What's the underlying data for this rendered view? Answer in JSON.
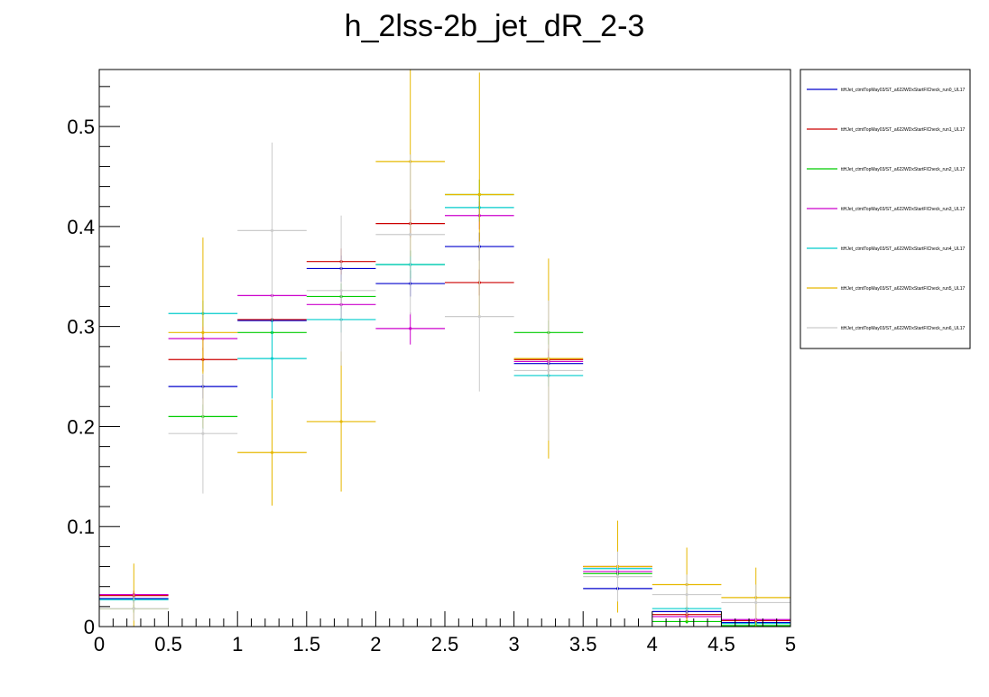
{
  "chart_data": {
    "type": "scatter",
    "title": "h_2lss-2b_jet_dR_2-3",
    "xlabel": "",
    "ylabel": "",
    "xlim": [
      0,
      5
    ],
    "ylim": [
      0,
      0.557
    ],
    "x_ticks": [
      "0",
      "0.5",
      "1",
      "1.5",
      "2",
      "2.5",
      "3",
      "3.5",
      "4",
      "4.5",
      "5"
    ],
    "y_ticks": [
      "0",
      "0.1",
      "0.2",
      "0.3",
      "0.4",
      "0.5"
    ],
    "bin_edges": [
      0,
      0.5,
      1,
      1.5,
      2,
      2.5,
      3,
      3.5,
      4,
      4.5,
      5
    ],
    "legend_position": "right",
    "series": [
      {
        "name": "ttHJet_ctmtTopMay03/ST_a622WDxStartFlCheck_run0_UL17",
        "color": "#0000cc",
        "values": [
          0.028,
          0.24,
          0.306,
          0.358,
          0.343,
          0.38,
          0.263,
          0.038,
          0.015,
          0.004
        ],
        "errors": [
          0.004,
          0.012,
          0.013,
          0.013,
          0.013,
          0.014,
          0.011,
          0.004,
          0.003,
          0.002
        ]
      },
      {
        "name": "ttHJet_ctmtTopMay03/ST_a622WDxStartFlCheck_run1_UL17",
        "color": "#cc0000",
        "values": [
          0.031,
          0.267,
          0.307,
          0.365,
          0.403,
          0.344,
          0.267,
          0.06,
          0.012,
          0.006
        ],
        "errors": [
          0.004,
          0.012,
          0.013,
          0.013,
          0.014,
          0.013,
          0.011,
          0.005,
          0.003,
          0.002
        ]
      },
      {
        "name": "ttHJet_ctmtTopMay03/ST_a622WDxStartFlCheck_run2_UL17",
        "color": "#00cc00",
        "values": [
          0.018,
          0.21,
          0.294,
          0.33,
          0.362,
          0.432,
          0.294,
          0.053,
          0.005,
          0.001
        ],
        "errors": [
          0.004,
          0.012,
          0.013,
          0.013,
          0.014,
          0.015,
          0.012,
          0.005,
          0.002,
          0.001
        ]
      },
      {
        "name": "ttHJet_ctmtTopMay03/ST_a622WDxStartFlCheck_run3_UL17",
        "color": "#cc00cc",
        "values": [
          0.032,
          0.288,
          0.331,
          0.322,
          0.298,
          0.411,
          0.265,
          0.055,
          0.01,
          0.007
        ],
        "errors": [
          0.004,
          0.012,
          0.013,
          0.013,
          0.016,
          0.014,
          0.011,
          0.005,
          0.003,
          0.002
        ]
      },
      {
        "name": "ttHJet_ctmtTopMay03/ST_a622WDxStartFlCheck_run4_UL17",
        "color": "#00cccc",
        "values": [
          0.027,
          0.313,
          0.268,
          0.307,
          0.362,
          0.419,
          0.251,
          0.058,
          0.018,
          0.003
        ],
        "errors": [
          0.004,
          0.013,
          0.04,
          0.013,
          0.014,
          0.014,
          0.011,
          0.005,
          0.003,
          0.002
        ]
      },
      {
        "name": "ttHJet_ctmtTopMay03/ST_a622WDxStartFlCheck_run5_UL17",
        "color": "#e6b800",
        "values": [
          0.018,
          0.294,
          0.174,
          0.205,
          0.465,
          0.432,
          0.268,
          0.06,
          0.042,
          0.029
        ],
        "errors": [
          0.045,
          0.095,
          0.053,
          0.07,
          0.095,
          0.122,
          0.1,
          0.046,
          0.037,
          0.03
        ]
      },
      {
        "name": "ttHJet_ctmtTopMay03/ST_a622WDxStartFlCheck_run6_UL17",
        "color": "#cccccc",
        "values": [
          0.018,
          0.193,
          0.396,
          0.336,
          0.392,
          0.31,
          0.256,
          0.05,
          0.032,
          0.024
        ],
        "errors": [
          0.012,
          0.06,
          0.088,
          0.075,
          0.08,
          0.075,
          0.07,
          0.025,
          0.02,
          0.018
        ]
      }
    ]
  }
}
